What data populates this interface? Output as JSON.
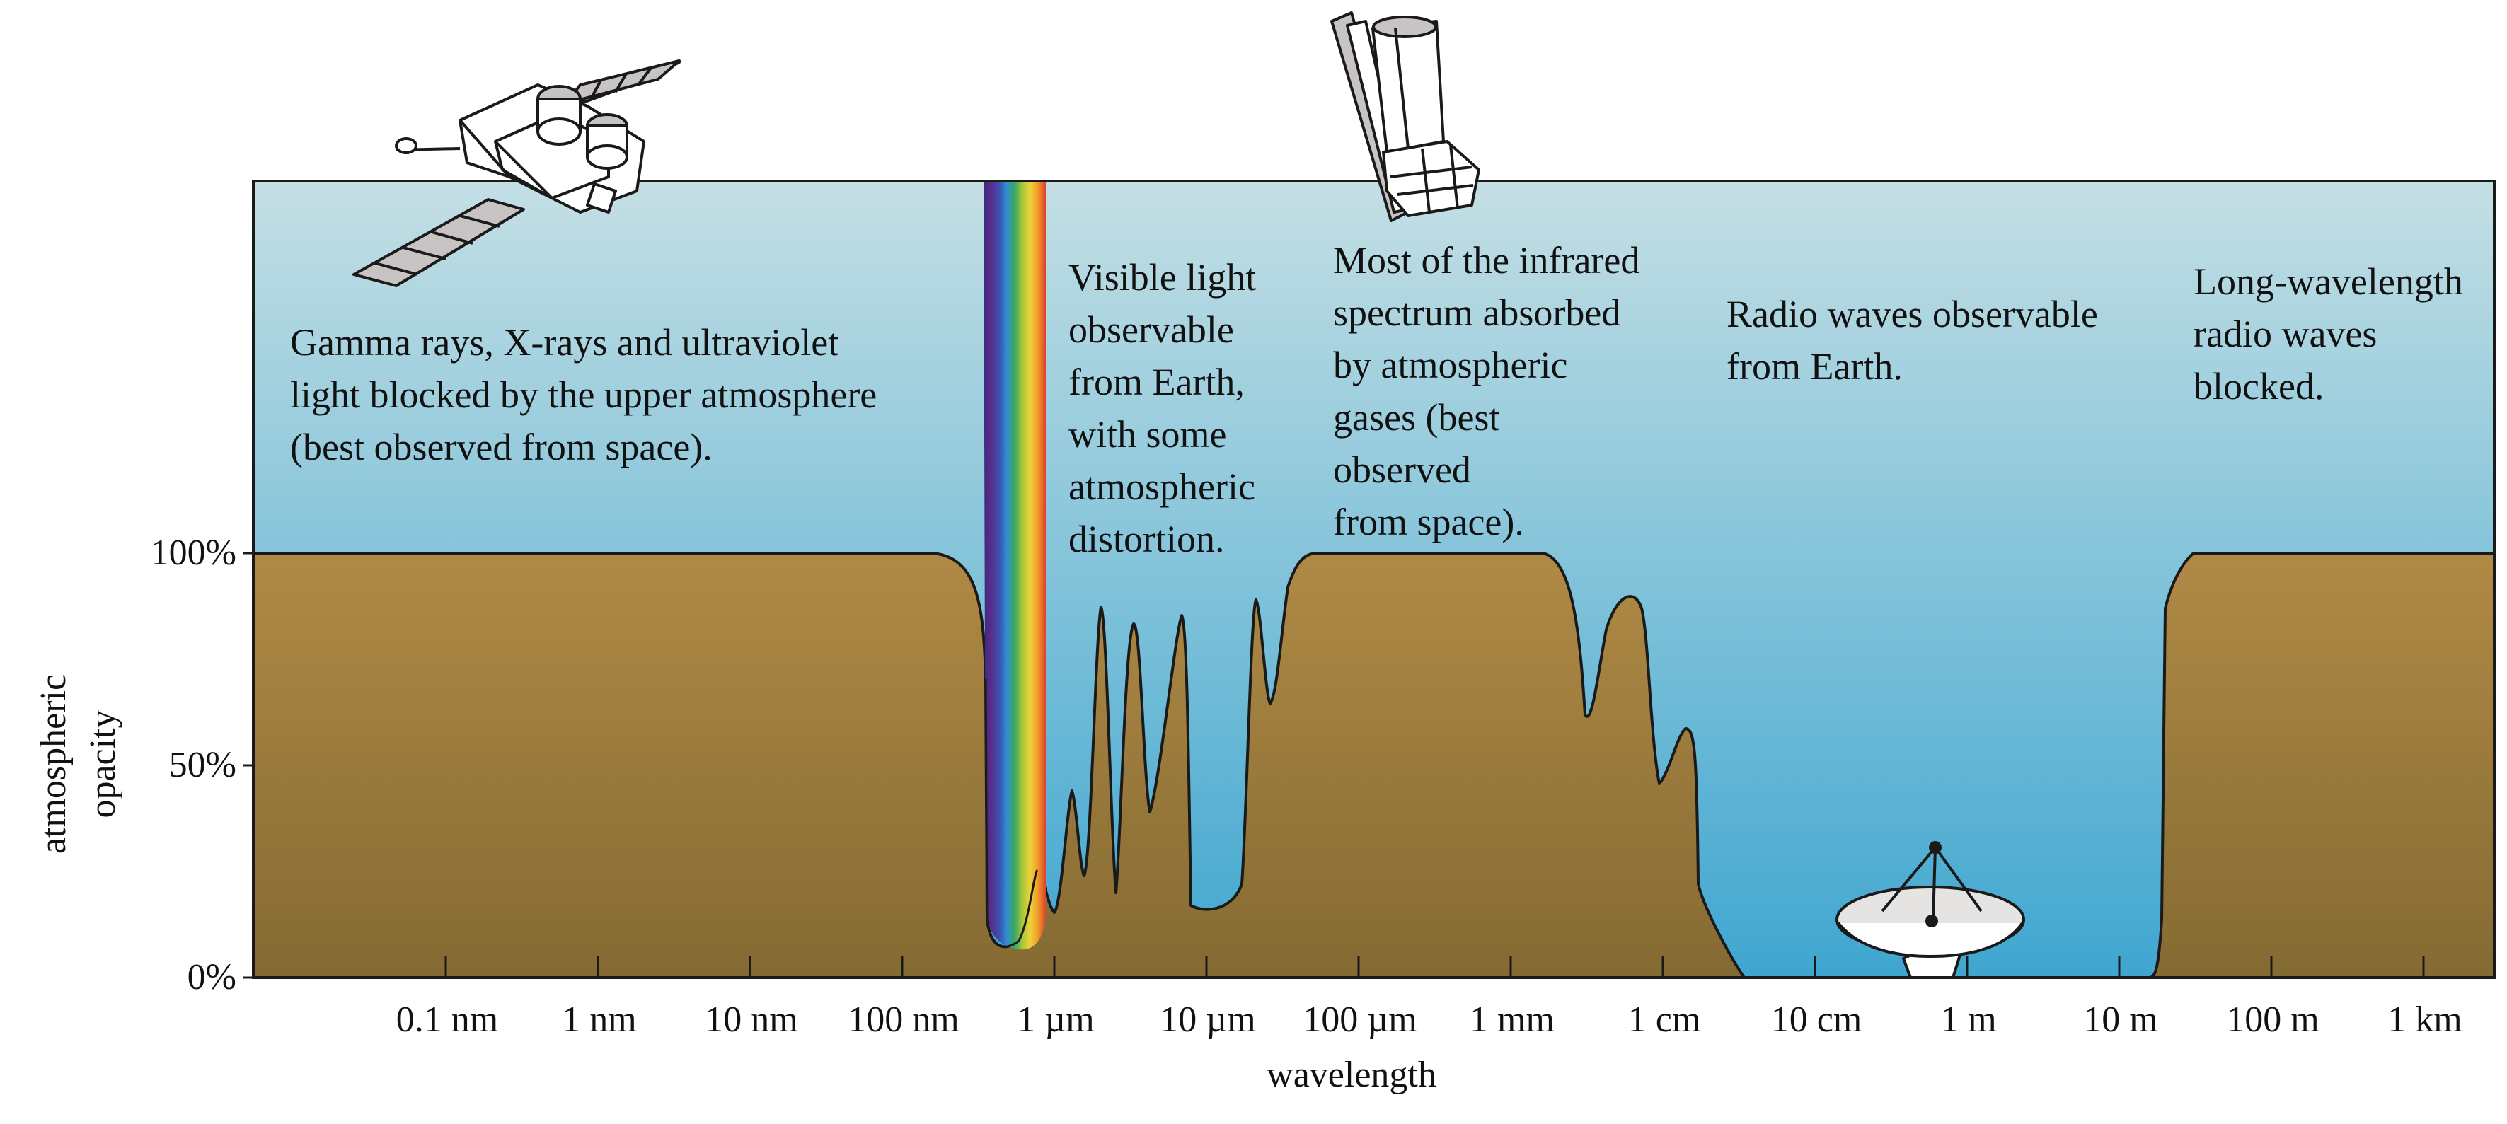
{
  "colors": {
    "sky_top": "#c4dfe4",
    "sky_bottom": "#3fa6d0",
    "ground_top": "#b08a45",
    "ground_bottom": "#846a33",
    "outline": "#1a1a1a",
    "instrument_fill": "#ffffff",
    "instrument_shade": "#c9c4c4"
  },
  "axes": {
    "y_title": [
      "atmospheric",
      "opacity"
    ],
    "x_title": "wavelength",
    "y_ticks": [
      {
        "value": 100,
        "label": "100%"
      },
      {
        "value": 50,
        "label": "50%"
      },
      {
        "value": 0,
        "label": "0%"
      }
    ],
    "x_ticks": [
      "0.1 nm",
      "1 nm",
      "10 nm",
      "100 nm",
      "1 µm",
      "10 µm",
      "100 µm",
      "1 mm",
      "1 cm",
      "10 cm",
      "1 m",
      "10 m",
      "100 m",
      "1 km"
    ]
  },
  "annotations": {
    "gamma": [
      "Gamma rays, X-rays and ultraviolet",
      "light blocked by the upper atmosphere",
      "(best observed from space)."
    ],
    "visible": [
      "Visible light",
      "observable",
      "from Earth,",
      "with some",
      "atmospheric",
      "distortion."
    ],
    "infrared": [
      "Most of the infrared",
      "spectrum absorbed",
      "by atmospheric",
      "gases (best",
      "observed",
      "from space)."
    ],
    "radio": [
      "Radio waves observable",
      "from Earth."
    ],
    "long_radio": [
      "Long-wavelength",
      "radio waves",
      "blocked."
    ]
  },
  "opacity_profile": [
    {
      "wavelength": "0.1 nm",
      "opacity": 100
    },
    {
      "wavelength": "100 nm",
      "opacity": 100
    },
    {
      "wavelength": "1 µm",
      "opacity": 8
    },
    {
      "wavelength": "10 µm",
      "opacity": 17
    },
    {
      "wavelength": "100 µm",
      "opacity": 100
    },
    {
      "wavelength": "1 mm",
      "opacity": 100
    },
    {
      "wavelength": "1 cm",
      "opacity": 58
    },
    {
      "wavelength": "10 cm",
      "opacity": 0
    },
    {
      "wavelength": "1 m",
      "opacity": 0
    },
    {
      "wavelength": "10 m",
      "opacity": 0
    },
    {
      "wavelength": "100 m",
      "opacity": 100
    },
    {
      "wavelength": "1 km",
      "opacity": 100
    }
  ],
  "spectrum_colors": [
    "#3b2a7a",
    "#5b2c8e",
    "#3c4fb0",
    "#2f8fd0",
    "#39a860",
    "#a8c83a",
    "#f0d23a",
    "#f09a2a",
    "#e0402a"
  ],
  "icons": {
    "space_telescope": "gamma-ray-space-observatory-icon",
    "infrared_telescope": "infrared-space-telescope-icon",
    "radio_dish": "radio-telescope-dish-icon"
  }
}
